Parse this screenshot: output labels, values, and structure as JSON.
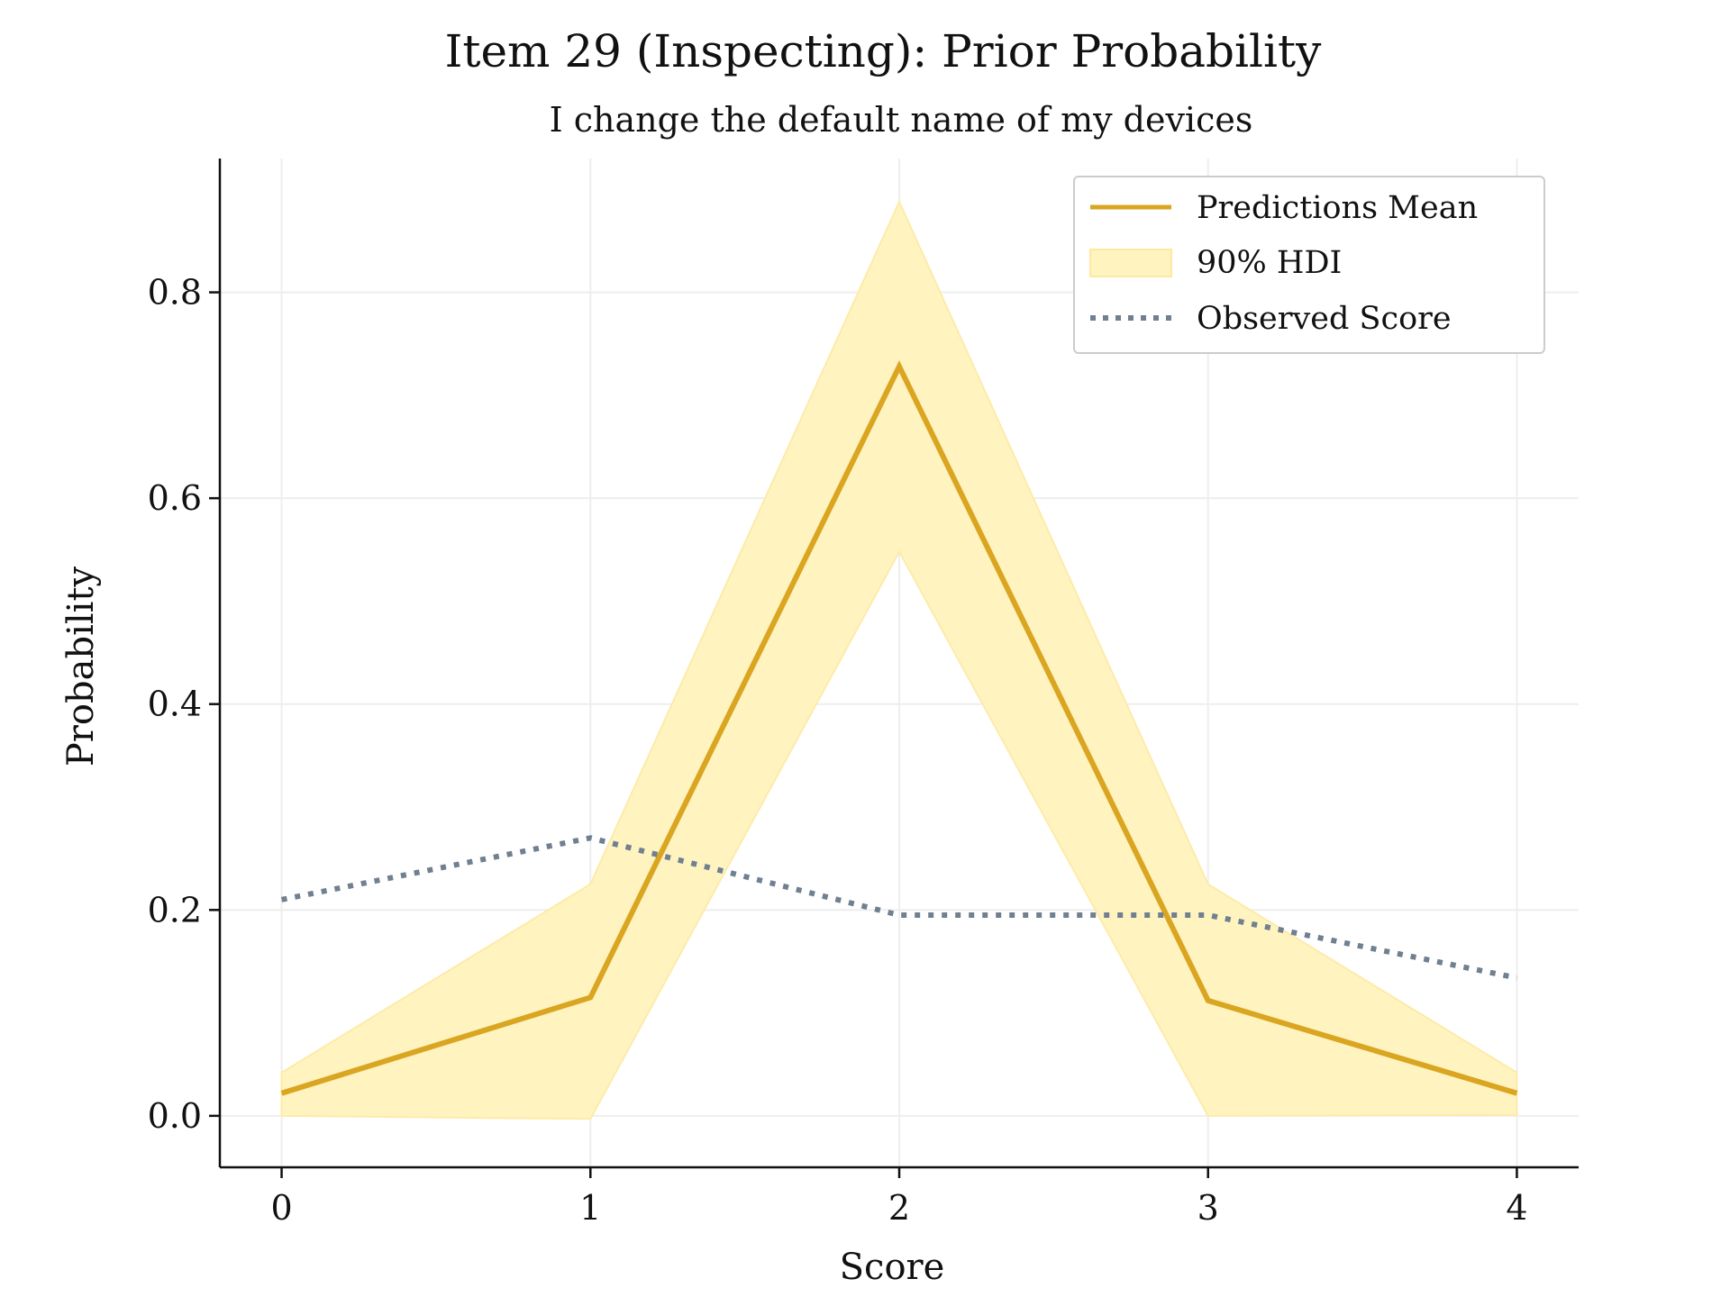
{
  "chart_data": {
    "type": "line",
    "title": "Item 29 (Inspecting): Prior Probability",
    "subtitle": "I change the default name of my devices",
    "xlabel": "Score",
    "ylabel": "Probability",
    "x": [
      0,
      1,
      2,
      3,
      4
    ],
    "x_ticks": [
      "0",
      "1",
      "2",
      "3",
      "4"
    ],
    "y_ticks": [
      "0.0",
      "0.2",
      "0.4",
      "0.6",
      "0.8"
    ],
    "xlim": [
      -0.2,
      4.2
    ],
    "ylim": [
      -0.05,
      0.93
    ],
    "grid": true,
    "legend_position": "top-right",
    "series": [
      {
        "name": "Predictions Mean",
        "kind": "line",
        "color": "#DAA520",
        "values": [
          0.022,
          0.115,
          0.728,
          0.112,
          0.022
        ]
      },
      {
        "name": "90% HDI",
        "kind": "band",
        "color": "#FFF3C0",
        "lower": [
          0.0,
          -0.003,
          0.548,
          0.0,
          0.001
        ],
        "upper": [
          0.042,
          0.225,
          0.888,
          0.225,
          0.042
        ]
      },
      {
        "name": "Observed Score",
        "kind": "dotted-line",
        "color": "#708090",
        "values": [
          0.21,
          0.27,
          0.195,
          0.195,
          0.134
        ]
      }
    ]
  }
}
